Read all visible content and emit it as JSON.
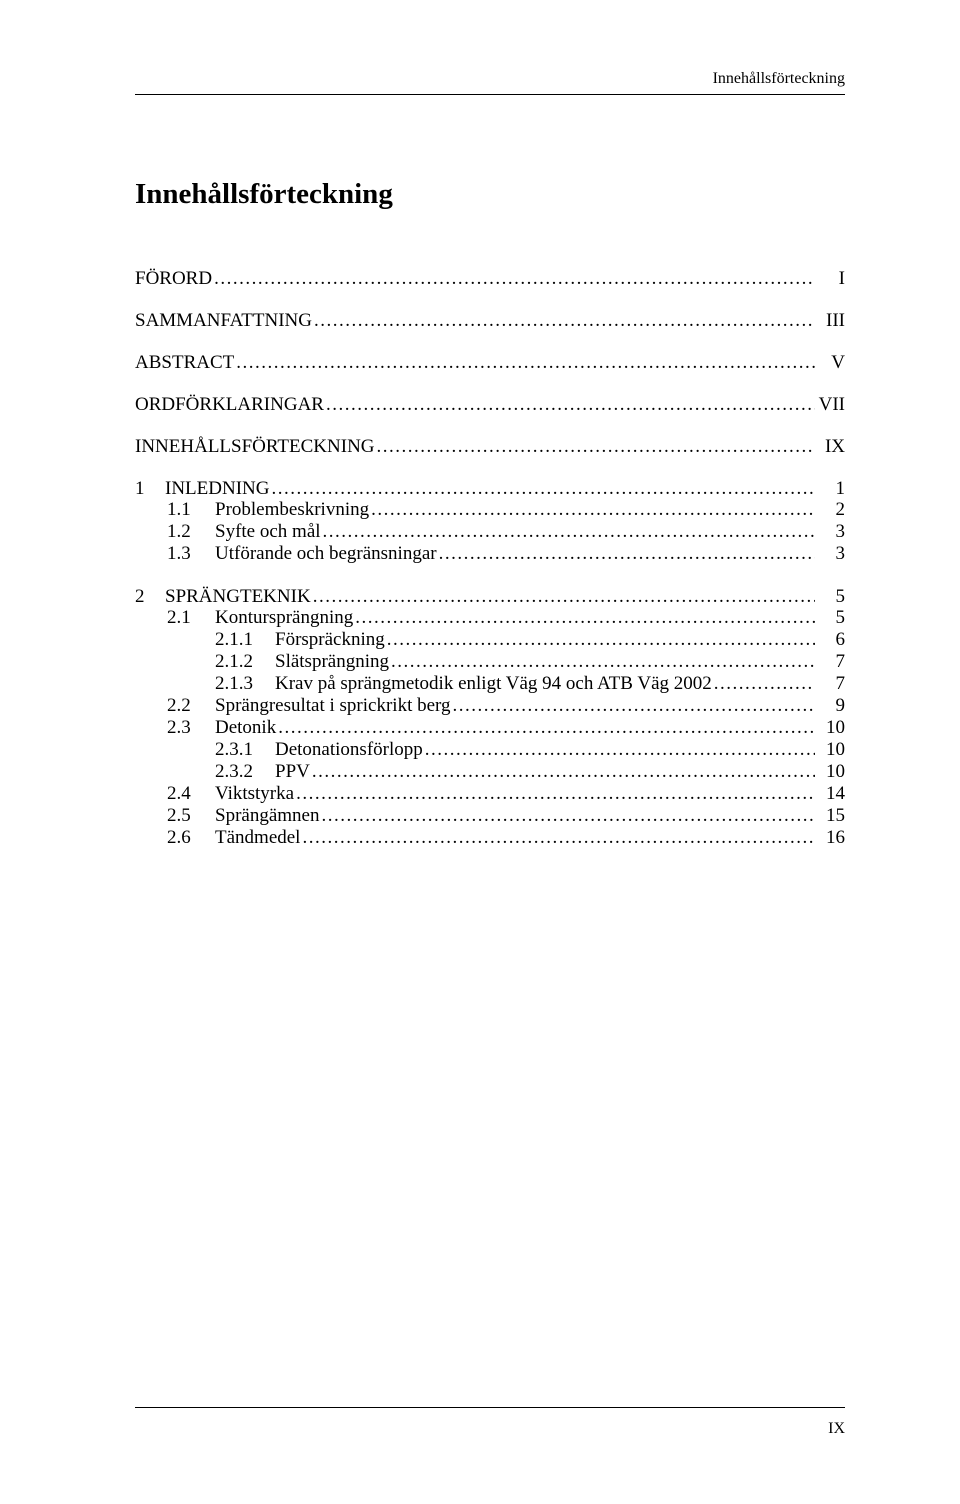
{
  "running_header": "Innehållsförteckning",
  "title": "Innehållsförteckning",
  "page_number": "IX",
  "entries": [
    {
      "group_break": false,
      "level": 0,
      "caps": true,
      "num": "",
      "text": "FÖRORD",
      "page": "I"
    },
    {
      "group_break": true,
      "level": 0,
      "caps": true,
      "num": "",
      "text": "SAMMANFATTNING",
      "page": "III"
    },
    {
      "group_break": true,
      "level": 0,
      "caps": true,
      "num": "",
      "text": "ABSTRACT",
      "page": "V"
    },
    {
      "group_break": true,
      "level": 0,
      "caps": true,
      "num": "",
      "text": "ORDFÖRKLARINGAR",
      "page": "VII"
    },
    {
      "group_break": true,
      "level": 0,
      "caps": true,
      "num": "",
      "text": "INNEHÅLLSFÖRTECKNING",
      "page": "IX"
    },
    {
      "group_break": true,
      "level": 1,
      "caps": true,
      "num": "1",
      "text": "INLEDNING",
      "page": "1"
    },
    {
      "group_break": false,
      "level": 2,
      "caps": false,
      "num": "1.1",
      "text": "Problembeskrivning",
      "page": "2"
    },
    {
      "group_break": false,
      "level": 2,
      "caps": false,
      "num": "1.2",
      "text": "Syfte och mål",
      "page": "3"
    },
    {
      "group_break": false,
      "level": 2,
      "caps": false,
      "num": "1.3",
      "text": "Utförande och begränsningar",
      "page": "3"
    },
    {
      "group_break": true,
      "level": 1,
      "caps": true,
      "num": "2",
      "text": "SPRÄNGTEKNIK",
      "page": "5"
    },
    {
      "group_break": false,
      "level": 2,
      "caps": false,
      "num": "2.1",
      "text": "Kontursprängning",
      "page": "5"
    },
    {
      "group_break": false,
      "level": 3,
      "caps": false,
      "num": "2.1.1",
      "text": "Förspräckning",
      "page": "6"
    },
    {
      "group_break": false,
      "level": 3,
      "caps": false,
      "num": "2.1.2",
      "text": "Slätsprängning",
      "page": "7"
    },
    {
      "group_break": false,
      "level": 3,
      "caps": false,
      "num": "2.1.3",
      "text": "Krav på sprängmetodik enligt Väg 94 och ATB Väg 2002",
      "page": "7"
    },
    {
      "group_break": false,
      "level": 2,
      "caps": false,
      "num": "2.2",
      "text": "Sprängresultat i sprickrikt berg",
      "page": "9"
    },
    {
      "group_break": false,
      "level": 2,
      "caps": false,
      "num": "2.3",
      "text": "Detonik",
      "page": "10"
    },
    {
      "group_break": false,
      "level": 3,
      "caps": false,
      "num": "2.3.1",
      "text": "Detonationsförlopp",
      "page": "10"
    },
    {
      "group_break": false,
      "level": 3,
      "caps": false,
      "num": "2.3.2",
      "text": "PPV",
      "page": "10"
    },
    {
      "group_break": false,
      "level": 2,
      "caps": false,
      "num": "2.4",
      "text": "Viktstyrka",
      "page": "14"
    },
    {
      "group_break": false,
      "level": 2,
      "caps": false,
      "num": "2.5",
      "text": "Sprängämnen",
      "page": "15"
    },
    {
      "group_break": false,
      "level": 2,
      "caps": false,
      "num": "2.6",
      "text": "Tändmedel",
      "page": "16"
    }
  ]
}
